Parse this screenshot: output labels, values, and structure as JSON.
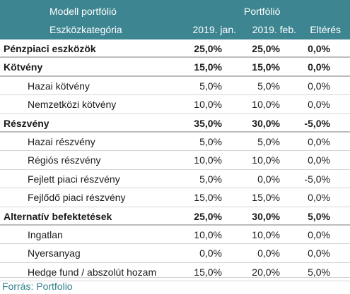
{
  "header": {
    "col_group_left": "Modell portfólió",
    "col_group_right": "Portfólió",
    "category": "Eszközkategória",
    "jan": "2019. jan.",
    "feb": "2019. feb.",
    "diff": "Eltérés"
  },
  "rows": [
    {
      "label": "Pénzpiaci eszközök",
      "jan": "25,0%",
      "feb": "25,0%",
      "diff": "0,0%",
      "bold": true
    },
    {
      "label": "Kötvény",
      "jan": "15,0%",
      "feb": "15,0%",
      "diff": "0,0%",
      "bold": true
    },
    {
      "label": "Hazai kötvény",
      "jan": "5,0%",
      "feb": "5,0%",
      "diff": "0,0%",
      "bold": false
    },
    {
      "label": "Nemzetközi kötvény",
      "jan": "10,0%",
      "feb": "10,0%",
      "diff": "0,0%",
      "bold": false
    },
    {
      "label": "Részvény",
      "jan": "35,0%",
      "feb": "30,0%",
      "diff": "-5,0%",
      "bold": true
    },
    {
      "label": "Hazai részvény",
      "jan": "5,0%",
      "feb": "5,0%",
      "diff": "0,0%",
      "bold": false
    },
    {
      "label": "Régiós részvény",
      "jan": "10,0%",
      "feb": "10,0%",
      "diff": "0,0%",
      "bold": false
    },
    {
      "label": "Fejlett piaci részvény",
      "jan": "5,0%",
      "feb": "0,0%",
      "diff": "-5,0%",
      "bold": false
    },
    {
      "label": "Fejlődő piaci részvény",
      "jan": "15,0%",
      "feb": "15,0%",
      "diff": "0,0%",
      "bold": false
    },
    {
      "label": "Alternatív befektetések",
      "jan": "25,0%",
      "feb": "30,0%",
      "diff": "5,0%",
      "bold": true
    },
    {
      "label": "Ingatlan",
      "jan": "10,0%",
      "feb": "10,0%",
      "diff": "0,0%",
      "bold": false
    },
    {
      "label": "Nyersanyag",
      "jan": "0,0%",
      "feb": "0,0%",
      "diff": "0,0%",
      "bold": false
    },
    {
      "label": "Hedge fund / abszolút hozam",
      "jan": "15,0%",
      "feb": "20,0%",
      "diff": "5,0%",
      "bold": false
    }
  ],
  "footer": {
    "source": "Forrás: Portfolio"
  },
  "colors": {
    "header_bg": "#3d8591",
    "source_text": "#2f7f8c"
  }
}
